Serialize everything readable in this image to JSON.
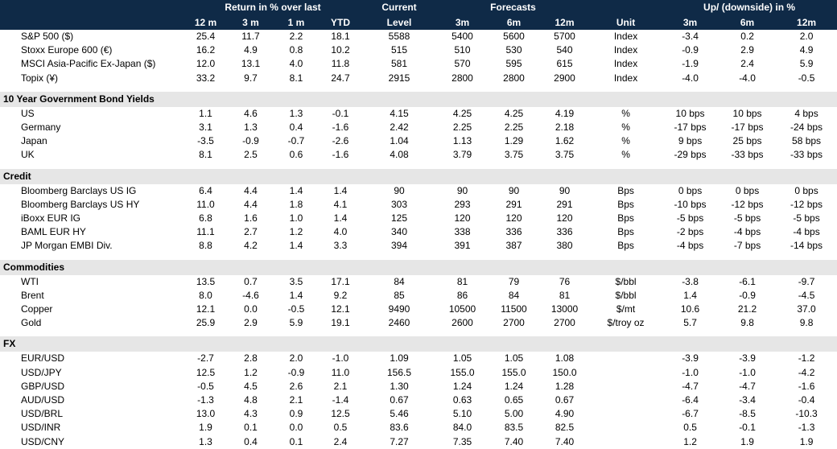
{
  "header": {
    "return_group": "Return in % over last",
    "current_top": "Current",
    "current_bottom": "Level",
    "forecasts_group": "Forecasts",
    "unit": "Unit",
    "updown_group": "Up/ (downside) in %",
    "return_cols": [
      "12 m",
      "3 m",
      "1 m",
      "YTD"
    ],
    "forecast_cols": [
      "3m",
      "6m",
      "12m"
    ],
    "updown_cols": [
      "3m",
      "6m",
      "12m"
    ]
  },
  "sections": [
    {
      "title": "",
      "rows": [
        {
          "name": "S&P 500 ($)",
          "r12": "25.4",
          "r3": "11.7",
          "r1": "2.2",
          "ytd": "18.1",
          "cur": "5588",
          "f3": "5400",
          "f6": "5600",
          "f12": "5700",
          "unit": "Index",
          "u3": "-3.4",
          "u6": "0.2",
          "u12": "2.0"
        },
        {
          "name": "Stoxx Europe 600 (€)",
          "r12": "16.2",
          "r3": "4.9",
          "r1": "0.8",
          "ytd": "10.2",
          "cur": "515",
          "f3": "510",
          "f6": "530",
          "f12": "540",
          "unit": "Index",
          "u3": "-0.9",
          "u6": "2.9",
          "u12": "4.9"
        },
        {
          "name": "MSCI Asia-Pacific Ex-Japan ($)",
          "r12": "12.0",
          "r3": "13.1",
          "r1": "4.0",
          "ytd": "11.8",
          "cur": "581",
          "f3": "570",
          "f6": "595",
          "f12": "615",
          "unit": "Index",
          "u3": "-1.9",
          "u6": "2.4",
          "u12": "5.9"
        },
        {
          "name": "Topix (¥)",
          "r12": "33.2",
          "r3": "9.7",
          "r1": "8.1",
          "ytd": "24.7",
          "cur": "2915",
          "f3": "2800",
          "f6": "2800",
          "f12": "2900",
          "unit": "Index",
          "u3": "-4.0",
          "u6": "-4.0",
          "u12": "-0.5"
        }
      ]
    },
    {
      "title": "10 Year Government Bond Yields",
      "rows": [
        {
          "name": "US",
          "r12": "1.1",
          "r3": "4.6",
          "r1": "1.3",
          "ytd": "-0.1",
          "cur": "4.15",
          "f3": "4.25",
          "f6": "4.25",
          "f12": "4.19",
          "unit": "%",
          "u3": "10 bps",
          "u6": "10 bps",
          "u12": "4 bps"
        },
        {
          "name": "Germany",
          "r12": "3.1",
          "r3": "1.3",
          "r1": "0.4",
          "ytd": "-1.6",
          "cur": "2.42",
          "f3": "2.25",
          "f6": "2.25",
          "f12": "2.18",
          "unit": "%",
          "u3": "-17 bps",
          "u6": "-17 bps",
          "u12": "-24 bps"
        },
        {
          "name": "Japan",
          "r12": "-3.5",
          "r3": "-0.9",
          "r1": "-0.7",
          "ytd": "-2.6",
          "cur": "1.04",
          "f3": "1.13",
          "f6": "1.29",
          "f12": "1.62",
          "unit": "%",
          "u3": "9 bps",
          "u6": "25 bps",
          "u12": "58 bps"
        },
        {
          "name": "UK",
          "r12": "8.1",
          "r3": "2.5",
          "r1": "0.6",
          "ytd": "-1.6",
          "cur": "4.08",
          "f3": "3.79",
          "f6": "3.75",
          "f12": "3.75",
          "unit": "%",
          "u3": "-29 bps",
          "u6": "-33 bps",
          "u12": "-33 bps"
        }
      ]
    },
    {
      "title": "Credit",
      "rows": [
        {
          "name": "Bloomberg Barclays US IG",
          "r12": "6.4",
          "r3": "4.4",
          "r1": "1.4",
          "ytd": "1.4",
          "cur": "90",
          "f3": "90",
          "f6": "90",
          "f12": "90",
          "unit": "Bps",
          "u3": "0 bps",
          "u6": "0 bps",
          "u12": "0 bps"
        },
        {
          "name": "Bloomberg Barclays US HY",
          "r12": "11.0",
          "r3": "4.4",
          "r1": "1.8",
          "ytd": "4.1",
          "cur": "303",
          "f3": "293",
          "f6": "291",
          "f12": "291",
          "unit": "Bps",
          "u3": "-10 bps",
          "u6": "-12 bps",
          "u12": "-12 bps"
        },
        {
          "name": "iBoxx EUR IG",
          "r12": "6.8",
          "r3": "1.6",
          "r1": "1.0",
          "ytd": "1.4",
          "cur": "125",
          "f3": "120",
          "f6": "120",
          "f12": "120",
          "unit": "Bps",
          "u3": "-5 bps",
          "u6": "-5 bps",
          "u12": "-5 bps"
        },
        {
          "name": "BAML EUR HY",
          "r12": "11.1",
          "r3": "2.7",
          "r1": "1.2",
          "ytd": "4.0",
          "cur": "340",
          "f3": "338",
          "f6": "336",
          "f12": "336",
          "unit": "Bps",
          "u3": "-2 bps",
          "u6": "-4 bps",
          "u12": "-4 bps"
        },
        {
          "name": "JP Morgan EMBI Div.",
          "r12": "8.8",
          "r3": "4.2",
          "r1": "1.4",
          "ytd": "3.3",
          "cur": "394",
          "f3": "391",
          "f6": "387",
          "f12": "380",
          "unit": "Bps",
          "u3": "-4 bps",
          "u6": "-7 bps",
          "u12": "-14 bps"
        }
      ]
    },
    {
      "title": "Commodities",
      "rows": [
        {
          "name": "WTI",
          "r12": "13.5",
          "r3": "0.7",
          "r1": "3.5",
          "ytd": "17.1",
          "cur": "84",
          "f3": "81",
          "f6": "79",
          "f12": "76",
          "unit": "$/bbl",
          "u3": "-3.8",
          "u6": "-6.1",
          "u12": "-9.7"
        },
        {
          "name": "Brent",
          "r12": "8.0",
          "r3": "-4.6",
          "r1": "1.4",
          "ytd": "9.2",
          "cur": "85",
          "f3": "86",
          "f6": "84",
          "f12": "81",
          "unit": "$/bbl",
          "u3": "1.4",
          "u6": "-0.9",
          "u12": "-4.5"
        },
        {
          "name": "Copper",
          "r12": "12.1",
          "r3": "0.0",
          "r1": "-0.5",
          "ytd": "12.1",
          "cur": "9490",
          "f3": "10500",
          "f6": "11500",
          "f12": "13000",
          "unit": "$/mt",
          "u3": "10.6",
          "u6": "21.2",
          "u12": "37.0"
        },
        {
          "name": "Gold",
          "r12": "25.9",
          "r3": "2.9",
          "r1": "5.9",
          "ytd": "19.1",
          "cur": "2460",
          "f3": "2600",
          "f6": "2700",
          "f12": "2700",
          "unit": "$/troy oz",
          "u3": "5.7",
          "u6": "9.8",
          "u12": "9.8"
        }
      ]
    },
    {
      "title": "FX",
      "rows": [
        {
          "name": "EUR/USD",
          "r12": "-2.7",
          "r3": "2.8",
          "r1": "2.0",
          "ytd": "-1.0",
          "cur": "1.09",
          "f3": "1.05",
          "f6": "1.05",
          "f12": "1.08",
          "unit": "",
          "u3": "-3.9",
          "u6": "-3.9",
          "u12": "-1.2"
        },
        {
          "name": "USD/JPY",
          "r12": "12.5",
          "r3": "1.2",
          "r1": "-0.9",
          "ytd": "11.0",
          "cur": "156.5",
          "f3": "155.0",
          "f6": "155.0",
          "f12": "150.0",
          "unit": "",
          "u3": "-1.0",
          "u6": "-1.0",
          "u12": "-4.2"
        },
        {
          "name": "GBP/USD",
          "r12": "-0.5",
          "r3": "4.5",
          "r1": "2.6",
          "ytd": "2.1",
          "cur": "1.30",
          "f3": "1.24",
          "f6": "1.24",
          "f12": "1.28",
          "unit": "",
          "u3": "-4.7",
          "u6": "-4.7",
          "u12": "-1.6"
        },
        {
          "name": "AUD/USD",
          "r12": "-1.3",
          "r3": "4.8",
          "r1": "2.1",
          "ytd": "-1.4",
          "cur": "0.67",
          "f3": "0.63",
          "f6": "0.65",
          "f12": "0.67",
          "unit": "",
          "u3": "-6.4",
          "u6": "-3.4",
          "u12": "-0.4"
        },
        {
          "name": "USD/BRL",
          "r12": "13.0",
          "r3": "4.3",
          "r1": "0.9",
          "ytd": "12.5",
          "cur": "5.46",
          "f3": "5.10",
          "f6": "5.00",
          "f12": "4.90",
          "unit": "",
          "u3": "-6.7",
          "u6": "-8.5",
          "u12": "-10.3"
        },
        {
          "name": "USD/INR",
          "r12": "1.9",
          "r3": "0.1",
          "r1": "0.0",
          "ytd": "0.5",
          "cur": "83.6",
          "f3": "84.0",
          "f6": "83.5",
          "f12": "82.5",
          "unit": "",
          "u3": "0.5",
          "u6": "-0.1",
          "u12": "-1.3"
        },
        {
          "name": "USD/CNY",
          "r12": "1.3",
          "r3": "0.4",
          "r1": "0.1",
          "ytd": "2.4",
          "cur": "7.27",
          "f3": "7.35",
          "f6": "7.40",
          "f12": "7.40",
          "unit": "",
          "u3": "1.2",
          "u6": "1.9",
          "u12": "1.9"
        }
      ]
    }
  ]
}
